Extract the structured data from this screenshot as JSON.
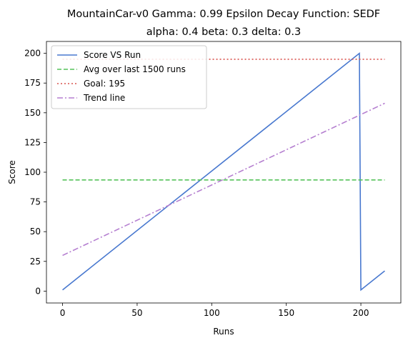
{
  "chart_data": {
    "type": "line",
    "title_line1": "MountainCar-v0 Gamma: 0.99 Epsilon Decay Function: SEDF",
    "title_line2": "alpha: 0.4  beta: 0.3  delta: 0.3",
    "xlabel": "Runs",
    "ylabel": "Score",
    "xlim": [
      -10.8,
      226.8
    ],
    "ylim": [
      -10,
      210
    ],
    "xticks": [
      0,
      50,
      100,
      150,
      200
    ],
    "yticks": [
      0,
      25,
      50,
      75,
      100,
      125,
      150,
      175,
      200
    ],
    "grid": false,
    "legend_position": "top-left",
    "series": [
      {
        "name": "Score VS Run",
        "style": "solid",
        "color": "#4878cf",
        "x": [
          0,
          199,
          200,
          216
        ],
        "y": [
          1,
          200,
          1,
          17
        ]
      },
      {
        "name": "Avg over last 1500 runs",
        "style": "dashed",
        "color": "#55c25a",
        "x": [
          0,
          216
        ],
        "y": [
          93.5,
          93.5
        ]
      },
      {
        "name": "Goal: 195",
        "style": "dotted",
        "color": "#d9534f",
        "x": [
          0,
          216
        ],
        "y": [
          195,
          195
        ]
      },
      {
        "name": "Trend line",
        "style": "dashdot",
        "color": "#b57fd0",
        "x": [
          0,
          216
        ],
        "y": [
          30,
          158
        ]
      }
    ]
  }
}
